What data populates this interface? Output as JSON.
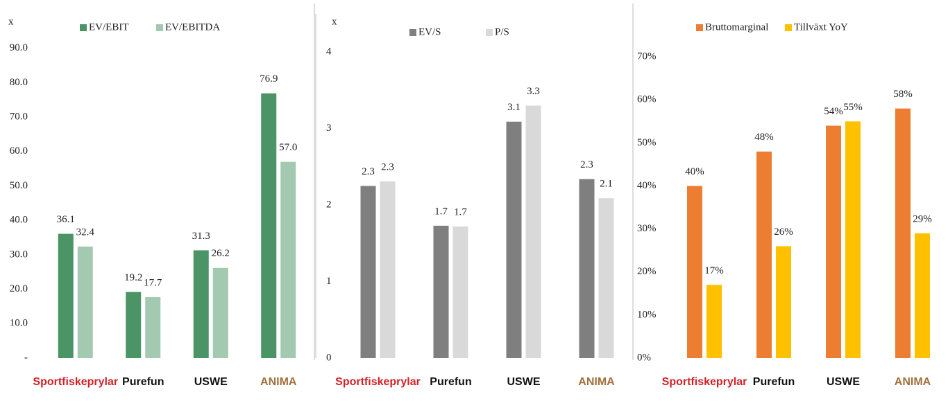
{
  "chart_data": [
    {
      "type": "bar",
      "y_label": "x",
      "categories": [
        "Sportfiskeprylar",
        "Purefun",
        "USWE",
        "ANIMA"
      ],
      "series": [
        {
          "name": "EV/EBIT",
          "color": "#4a9466",
          "values": [
            36.1,
            19.2,
            31.3,
            76.9
          ]
        },
        {
          "name": "EV/EBITDA",
          "color": "#a3c9b0",
          "values": [
            32.4,
            17.7,
            26.2,
            57.0
          ],
          "value_labels": [
            "32.4",
            "17.7",
            "26.2",
            "57.0"
          ]
        }
      ],
      "ylim": [
        0,
        100
      ],
      "yticks": [
        {
          "value": 0,
          "label": "-"
        },
        {
          "value": 10,
          "label": "10.0"
        },
        {
          "value": 20,
          "label": "20.0"
        },
        {
          "value": 30,
          "label": "30.0"
        },
        {
          "value": 40,
          "label": "40.0"
        },
        {
          "value": 50,
          "label": "50.0"
        },
        {
          "value": 60,
          "label": "60.0"
        },
        {
          "value": 70,
          "label": "70.0"
        },
        {
          "value": 80,
          "label": "80.0"
        },
        {
          "value": 90,
          "label": "90.0"
        }
      ]
    },
    {
      "type": "bar",
      "y_label": "x",
      "categories": [
        "Sportfiskeprylar",
        "Purefun",
        "USWE",
        "ANIMA"
      ],
      "series": [
        {
          "name": "EV/S",
          "color": "#7f7f7f",
          "values": [
            2.25,
            1.73,
            3.09,
            2.34
          ],
          "value_labels": [
            "2.3",
            "1.7",
            "3.1",
            "2.3"
          ]
        },
        {
          "name": "P/S",
          "color": "#d9d9d9",
          "values": [
            2.31,
            1.72,
            3.3,
            2.09
          ],
          "value_labels": [
            "2.3",
            "1.7",
            "3.3",
            "2.1"
          ]
        }
      ],
      "ylim": [
        0,
        4.5
      ],
      "yticks": [
        0,
        1,
        2,
        3,
        4
      ]
    },
    {
      "type": "bar",
      "categories": [
        "Sportfiskeprylar",
        "Purefun",
        "USWE",
        "ANIMA"
      ],
      "series": [
        {
          "name": "Bruttomarginal",
          "color": "#ed7d31",
          "values": [
            40,
            48,
            54,
            58
          ],
          "value_labels": [
            "40%",
            "48%",
            "54%",
            "58%"
          ]
        },
        {
          "name": "Tillväxt YoY",
          "color": "#ffc000",
          "values": [
            17,
            26,
            55,
            29
          ],
          "value_labels": [
            "17%",
            "26%",
            "55%",
            "29%"
          ]
        }
      ],
      "ylim": [
        0,
        80
      ],
      "yticks": [
        {
          "value": 0,
          "label": "0%"
        },
        {
          "value": 10,
          "label": "10%"
        },
        {
          "value": 20,
          "label": "20%"
        },
        {
          "value": 30,
          "label": "30%"
        },
        {
          "value": 40,
          "label": "40%"
        },
        {
          "value": 50,
          "label": "50%"
        },
        {
          "value": 60,
          "label": "60%"
        },
        {
          "value": 70,
          "label": "70%"
        }
      ]
    }
  ]
}
